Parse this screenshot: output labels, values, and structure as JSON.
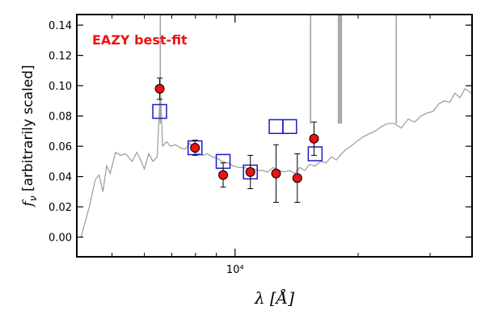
{
  "chart_data": {
    "type": "scatter",
    "annotation": "EAZY best-fit",
    "ylabel_symbol": "f",
    "ylabel_subscript": "ν",
    "ylabel_text": " [arbitrarily scaled]",
    "xlabel": "λ [Å]",
    "x_scale": "log",
    "xlim": [
      4100,
      38000
    ],
    "ylim": [
      -0.013,
      0.147
    ],
    "x_tick_label": "10⁴",
    "x_tick_value": 10000,
    "y_ticks": [
      0.0,
      0.02,
      0.04,
      0.06,
      0.08,
      0.1,
      0.12,
      0.14
    ],
    "y_tick_labels": [
      "0.00",
      "0.02",
      "0.04",
      "0.06",
      "0.08",
      "0.10",
      "0.12",
      "0.14"
    ],
    "grid": false,
    "colors": {
      "sed": "#a0a0a0",
      "observed": "#ee1111",
      "model": "#1a1acc",
      "annotation": "#ee1111"
    },
    "sed_template": {
      "x": [
        4200,
        4400,
        4550,
        4650,
        4750,
        4850,
        4950,
        5100,
        5250,
        5400,
        5600,
        5750,
        5850,
        6000,
        6150,
        6300,
        6450,
        6563,
        6650,
        6800,
        6950,
        7150,
        7350,
        7550,
        7750,
        7950,
        8150,
        8350,
        8550,
        8800,
        9050,
        9300,
        9600,
        9900,
        10200,
        10500,
        10800,
        11100,
        11400,
        11700,
        12000,
        12400,
        12800,
        13200,
        13600,
        14000,
        14400,
        14800,
        15200,
        15700,
        16200,
        16700,
        17200,
        17700,
        18200,
        18700,
        19200,
        19800,
        20500,
        21200,
        22000,
        22800,
        23600,
        24500,
        25500,
        26500,
        27500,
        28500,
        29500,
        30500,
        31500,
        32500,
        33500,
        34500,
        35500,
        36500,
        37500,
        38000
      ],
      "y": [
        0.0,
        0.02,
        0.038,
        0.041,
        0.03,
        0.047,
        0.042,
        0.056,
        0.054,
        0.055,
        0.05,
        0.056,
        0.052,
        0.045,
        0.055,
        0.05,
        0.053,
        0.098,
        0.06,
        0.063,
        0.06,
        0.061,
        0.059,
        0.058,
        0.062,
        0.057,
        0.055,
        0.054,
        0.055,
        0.053,
        0.052,
        0.05,
        0.049,
        0.047,
        0.046,
        0.046,
        0.045,
        0.045,
        0.044,
        0.044,
        0.043,
        0.046,
        0.044,
        0.043,
        0.044,
        0.042,
        0.046,
        0.044,
        0.048,
        0.047,
        0.05,
        0.049,
        0.053,
        0.051,
        0.055,
        0.058,
        0.06,
        0.063,
        0.066,
        0.068,
        0.07,
        0.073,
        0.075,
        0.075,
        0.072,
        0.078,
        0.076,
        0.08,
        0.082,
        0.083,
        0.088,
        0.09,
        0.089,
        0.095,
        0.092,
        0.098,
        0.096,
        0.094
      ]
    },
    "emission_lines_x": [
      6563,
      15300,
      17900,
      18050,
      18200,
      24800
    ],
    "observed": {
      "x": [
        6540,
        7980,
        9350,
        10900,
        12600,
        14200,
        15600
      ],
      "y": [
        0.098,
        0.059,
        0.041,
        0.043,
        0.042,
        0.039,
        0.065
      ],
      "yerr": [
        0.007,
        0.005,
        0.008,
        0.011,
        0.019,
        0.016,
        0.011
      ]
    },
    "model": {
      "x": [
        6540,
        7980,
        9350,
        10900,
        12600,
        13600,
        15700
      ],
      "y": [
        0.083,
        0.059,
        0.05,
        0.043,
        0.073,
        0.073,
        0.055
      ]
    }
  }
}
